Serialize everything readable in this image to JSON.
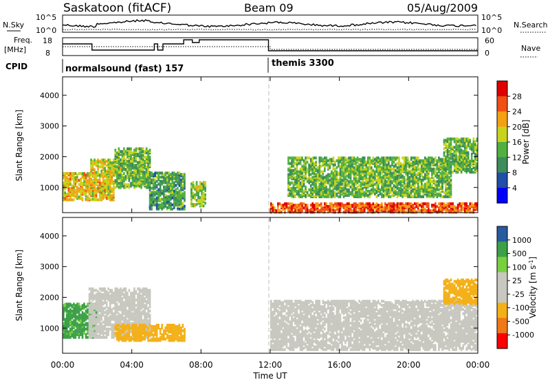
{
  "header": {
    "title": "Saskatoon (fitACF)",
    "beam": "Beam 09",
    "date": "05/Aug/2009"
  },
  "strips": {
    "nsky_label": "N.Sky",
    "nsearch_label": "N.Search",
    "nsky_ticks": [
      "10^5",
      "10^0"
    ],
    "nsearch_ticks": [
      "10^5",
      "10^0"
    ],
    "freq_label": "Freq.",
    "freq_unit": "[MHz]",
    "freq_ticks": [
      "18",
      "8"
    ],
    "nave_label": "Nave",
    "nave_ticks": [
      "60",
      "0"
    ],
    "cpid_label": "CPID",
    "cpid_modes": [
      {
        "name": "normalsound (fast) 157",
        "start_hour": 0
      },
      {
        "name": "themis 3300",
        "start_hour": 12
      }
    ]
  },
  "axes": {
    "ylabel": "Slant Range [km]",
    "xlabel": "Time UT",
    "y_ticks": [
      "4000",
      "3000",
      "2000",
      "1000"
    ],
    "x_ticks": [
      "00:00",
      "04:00",
      "08:00",
      "12:00",
      "16:00",
      "20:00",
      "00:00"
    ]
  },
  "colorbars": {
    "power": {
      "label": "Power [dB]",
      "ticks": [
        "28",
        "24",
        "20",
        "16",
        "12",
        "8",
        "4"
      ],
      "colors": [
        "#0000ff",
        "#1f4fa8",
        "#3c8c5c",
        "#50b040",
        "#c8d41c",
        "#f4a014",
        "#f05014",
        "#e00000"
      ]
    },
    "velocity": {
      "label": "Velocity [m s^-1]",
      "ticks": [
        "1000",
        "500",
        "100",
        "25",
        "-25",
        "-100",
        "-500",
        "-1000"
      ],
      "colors": [
        "#ff0000",
        "#f07818",
        "#f4b018",
        "#c8c8c0",
        "#c8c8c0",
        "#78d040",
        "#3ca048",
        "#285aa0",
        "#0000ff"
      ]
    }
  },
  "chart_data": [
    {
      "type": "heatmap",
      "title": "",
      "xlabel": "Time UT",
      "ylabel": "Slant Range [km]",
      "xlim": [
        0,
        24
      ],
      "ylim": [
        180,
        4600
      ],
      "colorbar": "Power [dB]",
      "clim": [
        0,
        32
      ],
      "regions": [
        {
          "t0": 0.0,
          "t1": 3.0,
          "r0": 600,
          "r1": 1500,
          "level": 20
        },
        {
          "t0": 1.6,
          "t1": 3.4,
          "r0": 1400,
          "r1": 1900,
          "level": 18
        },
        {
          "t0": 3.0,
          "t1": 5.0,
          "r0": 1000,
          "r1": 2300,
          "level": 14
        },
        {
          "t0": 5.0,
          "t1": 7.0,
          "r0": 300,
          "r1": 1500,
          "level": 12
        },
        {
          "t0": 7.4,
          "t1": 8.2,
          "r0": 400,
          "r1": 1200,
          "level": 16
        },
        {
          "t0": 12.0,
          "t1": 24.0,
          "r0": 200,
          "r1": 500,
          "level": 26
        },
        {
          "t0": 13.0,
          "t1": 22.5,
          "r0": 700,
          "r1": 2000,
          "level": 14
        },
        {
          "t0": 22.0,
          "t1": 24.0,
          "r0": 1500,
          "r1": 2600,
          "level": 14
        }
      ]
    },
    {
      "type": "heatmap",
      "title": "",
      "xlabel": "Time UT",
      "ylabel": "Slant Range [km]",
      "xlim": [
        0,
        24
      ],
      "ylim": [
        180,
        4600
      ],
      "colorbar": "Velocity [m s^-1]",
      "clim": [
        -1000,
        1000
      ],
      "regions": [
        {
          "t0": 0.0,
          "t1": 2.0,
          "r0": 700,
          "r1": 1800,
          "level": 200
        },
        {
          "t0": 1.5,
          "t1": 5.0,
          "r0": 700,
          "r1": 2300,
          "level": 0
        },
        {
          "t0": 3.0,
          "t1": 7.0,
          "r0": 600,
          "r1": 1100,
          "level": -80
        },
        {
          "t0": 12.0,
          "t1": 24.0,
          "r0": 300,
          "r1": 1900,
          "level": 0
        },
        {
          "t0": 22.0,
          "t1": 24.0,
          "r0": 1800,
          "r1": 2600,
          "level": -80
        }
      ]
    }
  ]
}
